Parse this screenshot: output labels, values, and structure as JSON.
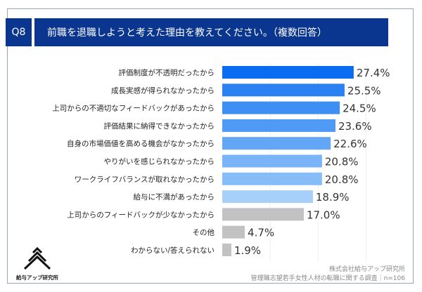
{
  "question_no": "Q8",
  "title": "前職を退職しようと考えた理由を教えてください。（複数回答）",
  "chart_data": {
    "type": "bar",
    "orientation": "horizontal",
    "xlim": [
      0,
      30
    ],
    "grid": true,
    "categories": [
      "評価制度が不透明だったから",
      "成長実感が得られなかったから",
      "上司からの不適切なフィードバックがあったから",
      "評価結果に納得できなかったから",
      "自身の市場価値を高める機会がなかったから",
      "やりがいを感じられなかったから",
      "ワークライフバランスが取れなかったから",
      "給与に不満があったから",
      "上司からのフィードバックが少なかったから",
      "その他",
      "わからない/答えられない"
    ],
    "values": [
      27.4,
      25.5,
      24.5,
      23.6,
      22.6,
      20.8,
      20.8,
      18.9,
      17.0,
      4.7,
      1.9
    ],
    "value_labels": [
      "27.4%",
      "25.5%",
      "24.5%",
      "23.6%",
      "22.6%",
      "20.8%",
      "20.8%",
      "18.9%",
      "17.0%",
      "4.7%",
      "1.9%"
    ],
    "colors": [
      "#0a6cf0",
      "#2a82f2",
      "#3d8ff3",
      "#4f9af4",
      "#62a6f5",
      "#78b4f7",
      "#86bcf7",
      "#a6cffa",
      "#c2c2c2",
      "#c2c2c2",
      "#c2c2c2"
    ]
  },
  "logo_text": "給与アップ研究所",
  "source_company": "株式会社給与アップ研究所",
  "source_survey": "管理職志望若手女性人材の転職に関する調査｜n=106"
}
